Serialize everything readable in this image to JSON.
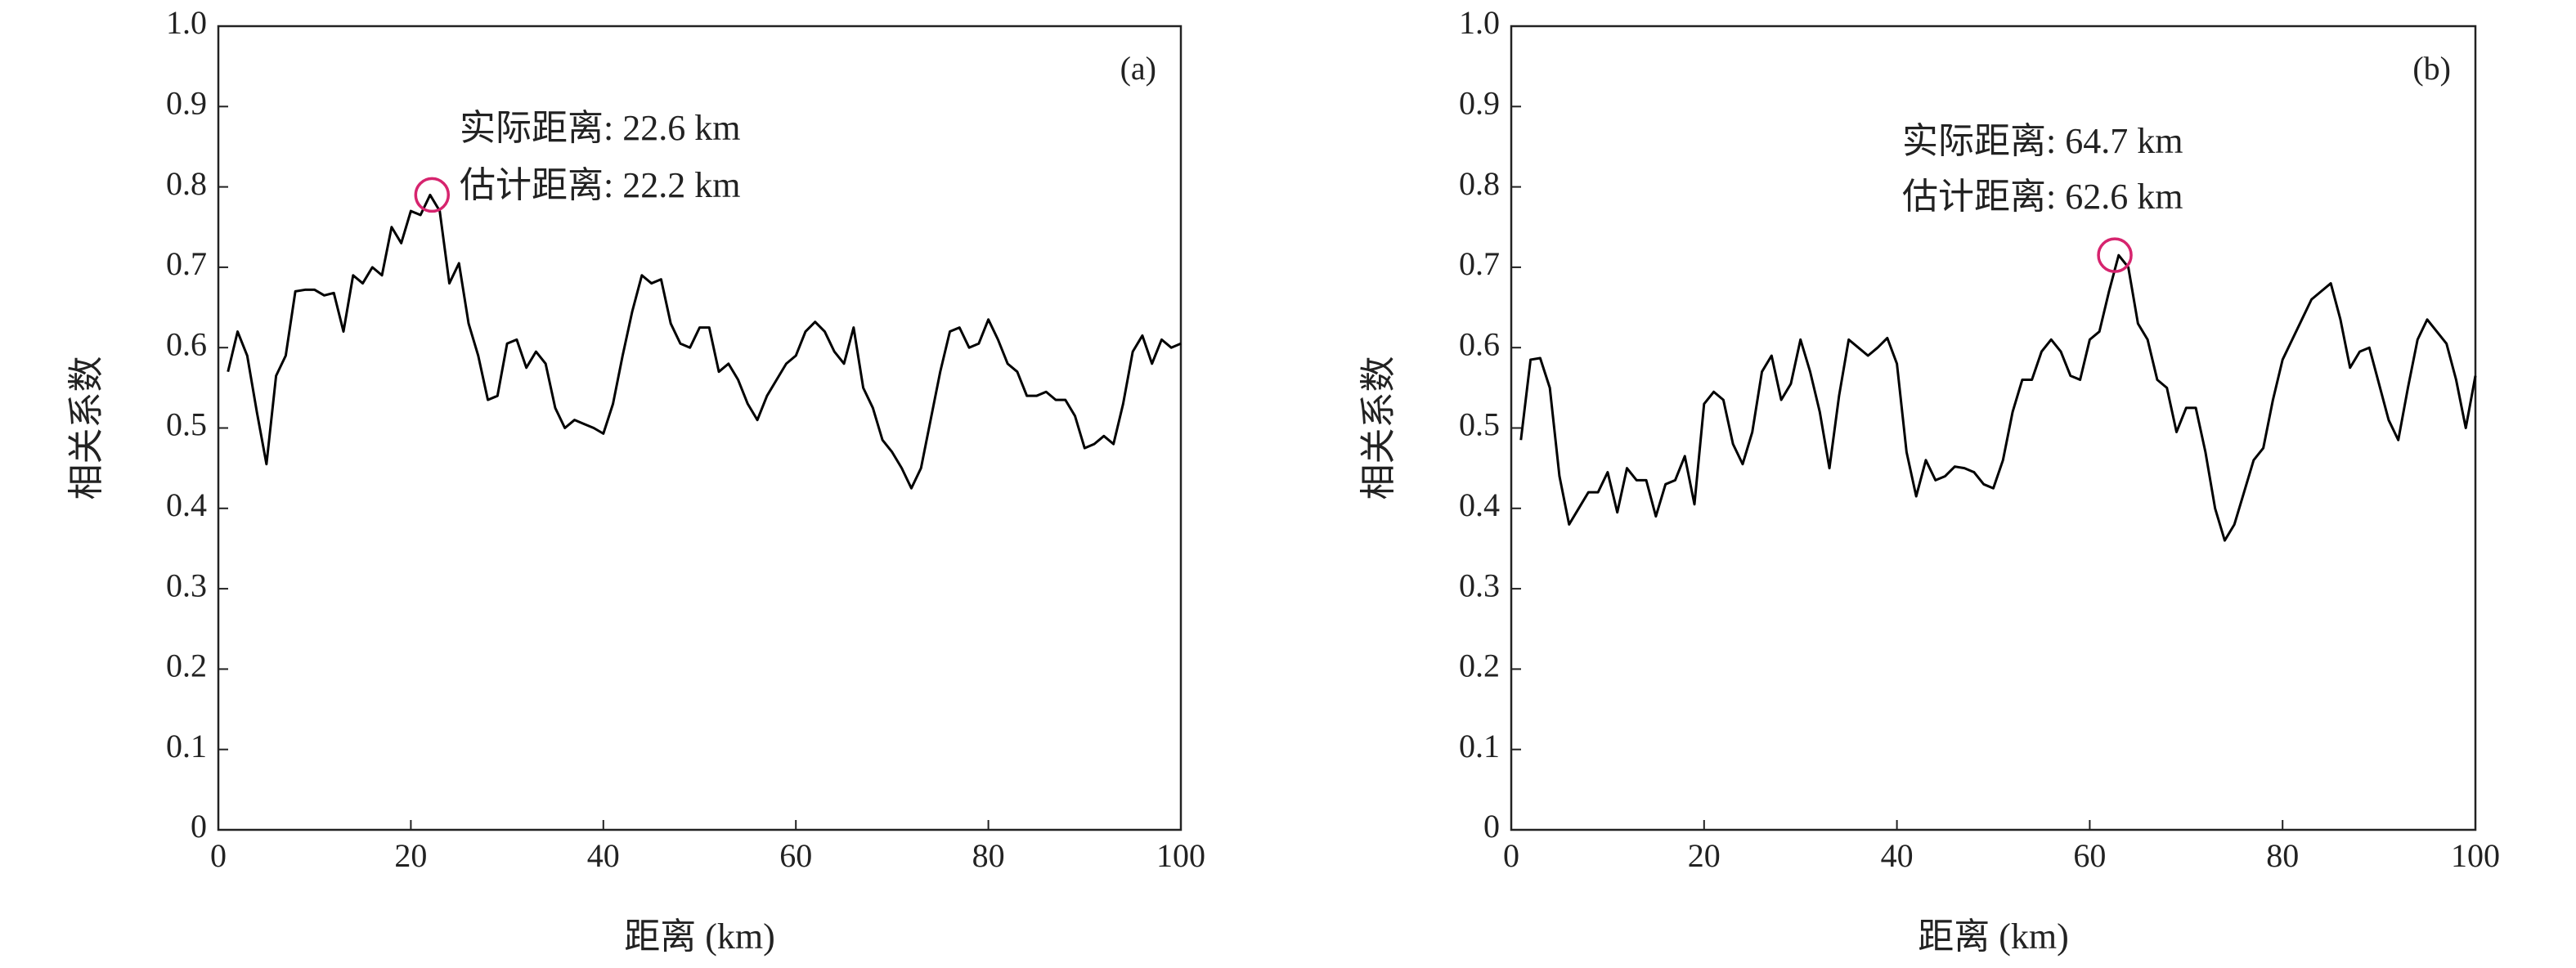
{
  "chart_data": [
    {
      "type": "line",
      "panel_label": "(a)",
      "xlabel": "距离 (km)",
      "ylabel": "相关系数",
      "annotations": [
        "实际距离: 22.6 km",
        "估计距离: 22.2 km"
      ],
      "highlight": {
        "x": 22.2,
        "y": 0.79,
        "color": "#d6246e"
      },
      "xlim": [
        0,
        100
      ],
      "ylim": [
        0,
        1
      ],
      "xticks": [
        0,
        20,
        40,
        60,
        80,
        100
      ],
      "yticks": [
        0,
        0.1,
        0.2,
        0.3,
        0.4,
        0.5,
        0.6,
        0.7,
        0.8,
        0.9,
        {
          "value": 1,
          "label": "1.0"
        }
      ],
      "x": [
        1,
        2,
        3,
        4,
        5,
        6,
        7,
        8,
        9,
        10,
        11,
        12,
        13,
        14,
        15,
        16,
        17,
        18,
        19,
        20,
        21,
        22,
        23,
        24,
        25,
        26,
        27,
        28,
        29,
        30,
        31,
        32,
        33,
        34,
        35,
        36,
        37,
        38,
        39,
        40,
        41,
        42,
        43,
        44,
        45,
        46,
        47,
        48,
        49,
        50,
        51,
        52,
        53,
        54,
        55,
        56,
        57,
        58,
        59,
        60,
        61,
        62,
        63,
        64,
        65,
        66,
        67,
        68,
        69,
        70,
        71,
        72,
        73,
        74,
        75,
        76,
        77,
        78,
        79,
        80,
        81,
        82,
        83,
        84,
        85,
        86,
        87,
        88,
        89,
        90,
        91,
        92,
        93,
        94,
        95,
        96,
        97,
        98,
        99,
        100
      ],
      "series": [
        {
          "color": "#000000",
          "values": [
            0.57,
            0.62,
            0.59,
            0.52,
            0.455,
            0.565,
            0.59,
            0.67,
            0.672,
            0.672,
            0.665,
            0.668,
            0.62,
            0.69,
            0.68,
            0.7,
            0.69,
            0.75,
            0.73,
            0.77,
            0.765,
            0.79,
            0.77,
            0.68,
            0.705,
            0.63,
            0.59,
            0.535,
            0.54,
            0.605,
            0.61,
            0.575,
            0.595,
            0.58,
            0.525,
            0.5,
            0.51,
            0.505,
            0.5,
            0.493,
            0.53,
            0.59,
            0.645,
            0.69,
            0.68,
            0.685,
            0.63,
            0.605,
            0.6,
            0.625,
            0.625,
            0.57,
            0.58,
            0.56,
            0.53,
            0.51,
            0.54,
            0.56,
            0.58,
            0.59,
            0.62,
            0.632,
            0.62,
            0.595,
            0.58,
            0.625,
            0.55,
            0.525,
            0.485,
            0.47,
            0.45,
            0.425,
            0.45,
            0.51,
            0.57,
            0.62,
            0.625,
            0.6,
            0.605,
            0.635,
            0.61,
            0.58,
            0.57,
            0.54,
            0.54,
            0.545,
            0.535,
            0.535,
            0.515,
            0.475,
            0.48,
            0.49,
            0.48,
            0.53,
            0.595,
            0.615,
            0.58,
            0.61,
            0.6,
            0.605
          ]
        }
      ]
    },
    {
      "type": "line",
      "panel_label": "(b)",
      "xlabel": "距离 (km)",
      "ylabel": "相关系数",
      "annotations": [
        "实际距离: 64.7 km",
        "估计距离: 62.6 km"
      ],
      "highlight": {
        "x": 62.6,
        "y": 0.715,
        "color": "#d6246e"
      },
      "xlim": [
        0,
        100
      ],
      "ylim": [
        0,
        1
      ],
      "xticks": [
        0,
        20,
        40,
        60,
        80,
        100
      ],
      "yticks": [
        0,
        0.1,
        0.2,
        0.3,
        0.4,
        0.5,
        0.6,
        0.7,
        0.8,
        0.9,
        {
          "value": 1,
          "label": "1.0"
        }
      ],
      "x": [
        1,
        2,
        3,
        4,
        5,
        6,
        7,
        8,
        9,
        10,
        11,
        12,
        13,
        14,
        15,
        16,
        17,
        18,
        19,
        20,
        21,
        22,
        23,
        24,
        25,
        26,
        27,
        28,
        29,
        30,
        31,
        32,
        33,
        34,
        35,
        36,
        37,
        38,
        39,
        40,
        41,
        42,
        43,
        44,
        45,
        46,
        47,
        48,
        49,
        50,
        51,
        52,
        53,
        54,
        55,
        56,
        57,
        58,
        59,
        60,
        61,
        62,
        63,
        64,
        65,
        66,
        67,
        68,
        69,
        70,
        71,
        72,
        73,
        74,
        75,
        76,
        77,
        78,
        79,
        80,
        81,
        82,
        83,
        84,
        85,
        86,
        87,
        88,
        89,
        90,
        91,
        92,
        93,
        94,
        95,
        96,
        97,
        98,
        99,
        100
      ],
      "series": [
        {
          "color": "#000000",
          "values": [
            0.485,
            0.585,
            0.587,
            0.55,
            0.44,
            0.38,
            0.4,
            0.42,
            0.42,
            0.445,
            0.395,
            0.45,
            0.435,
            0.435,
            0.39,
            0.43,
            0.435,
            0.465,
            0.405,
            0.53,
            0.545,
            0.535,
            0.48,
            0.455,
            0.495,
            0.57,
            0.59,
            0.535,
            0.555,
            0.61,
            0.57,
            0.52,
            0.45,
            0.54,
            0.61,
            0.6,
            0.59,
            0.6,
            0.612,
            0.58,
            0.47,
            0.415,
            0.46,
            0.435,
            0.44,
            0.452,
            0.45,
            0.445,
            0.43,
            0.425,
            0.46,
            0.52,
            0.56,
            0.56,
            0.595,
            0.61,
            0.595,
            0.565,
            0.56,
            0.61,
            0.62,
            0.67,
            0.715,
            0.7,
            0.63,
            0.61,
            0.56,
            0.55,
            0.495,
            0.525,
            0.525,
            0.47,
            0.4,
            0.36,
            0.38,
            0.42,
            0.46,
            0.475,
            0.535,
            0.585,
            0.61,
            0.635,
            0.66,
            0.67,
            0.68,
            0.635,
            0.575,
            0.595,
            0.6,
            0.555,
            0.51,
            0.485,
            0.55,
            0.61,
            0.635,
            0.62,
            0.605,
            0.56,
            0.5,
            0.565
          ]
        }
      ]
    }
  ]
}
